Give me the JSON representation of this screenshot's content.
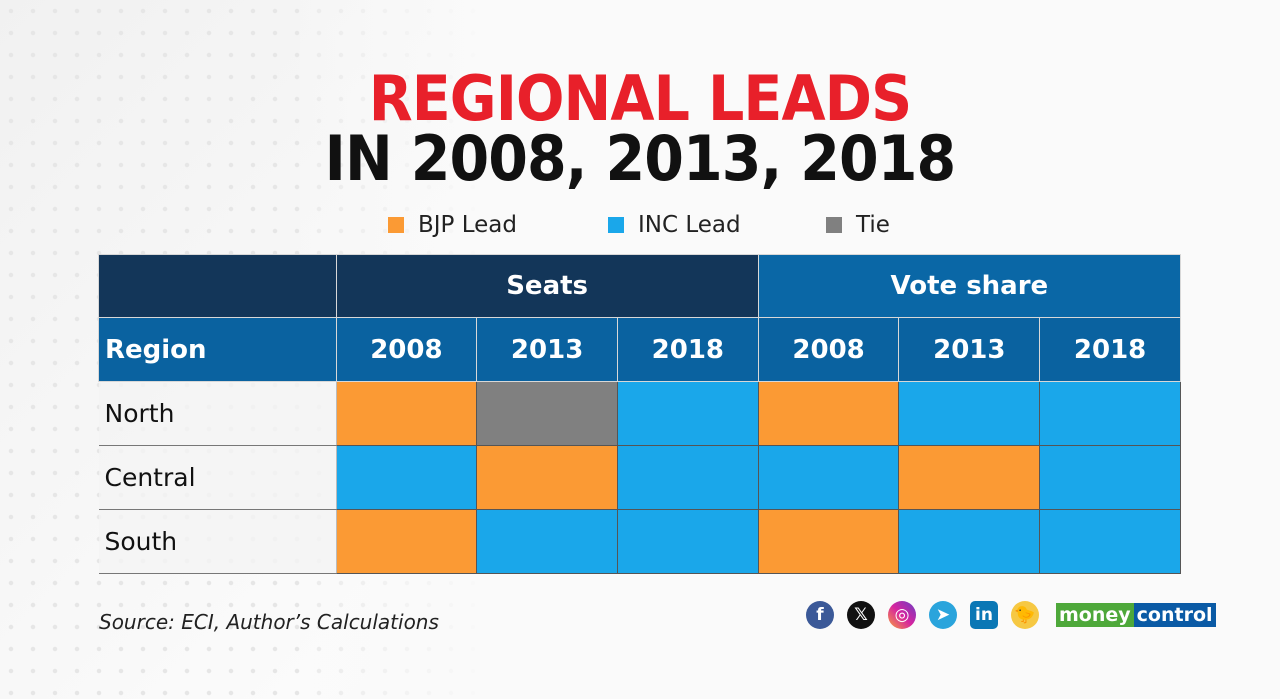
{
  "title_line1": "REGIONAL LEADS",
  "title_line2": "IN 2008, 2013, 2018",
  "legend": [
    {
      "label": "BJP Lead",
      "color": "#fb9a34"
    },
    {
      "label": "INC Lead",
      "color": "#1aa7ea"
    },
    {
      "label": "Tie",
      "color": "#808080"
    }
  ],
  "chart_data": {
    "type": "table",
    "title": "REGIONAL LEADS IN 2008, 2013, 2018",
    "groups": [
      "Seats",
      "Vote share"
    ],
    "region_header": "Region",
    "years": [
      "2008",
      "2013",
      "2018",
      "2008",
      "2013",
      "2018"
    ],
    "rows": [
      {
        "region": "North",
        "values": [
          "BJP",
          "Tie",
          "INC",
          "BJP",
          "INC",
          "INC"
        ]
      },
      {
        "region": "Central",
        "values": [
          "INC",
          "BJP",
          "INC",
          "INC",
          "BJP",
          "INC"
        ]
      },
      {
        "region": "South",
        "values": [
          "BJP",
          "INC",
          "INC",
          "BJP",
          "INC",
          "INC"
        ]
      }
    ],
    "colors": {
      "BJP": "#fb9a34",
      "INC": "#1aa7ea",
      "Tie": "#808080"
    }
  },
  "source": "Source: ECI, Author’s Calculations",
  "brand": {
    "part1": "money",
    "part2": "control"
  },
  "social_icons": [
    "facebook-icon",
    "x-icon",
    "instagram-icon",
    "telegram-icon",
    "linkedin-icon",
    "koo-icon"
  ]
}
